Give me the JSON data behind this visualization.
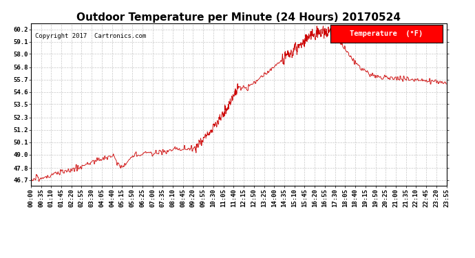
{
  "title": "Outdoor Temperature per Minute (24 Hours) 20170524",
  "copyright_text": "Copyright 2017  Cartronics.com",
  "legend_label": "Temperature  (°F)",
  "line_color": "#cc0000",
  "background_color": "#ffffff",
  "plot_bg_color": "#ffffff",
  "grid_color": "#c0c0c0",
  "ylim": [
    46.2,
    60.75
  ],
  "yticks": [
    46.7,
    47.8,
    49.0,
    50.1,
    51.2,
    52.3,
    53.5,
    54.6,
    55.7,
    56.8,
    58.0,
    59.1,
    60.2
  ],
  "xtick_labels": [
    "00:00",
    "00:35",
    "01:10",
    "01:45",
    "02:20",
    "02:55",
    "03:30",
    "04:05",
    "04:40",
    "05:15",
    "05:50",
    "06:25",
    "07:00",
    "07:35",
    "08:10",
    "08:45",
    "09:20",
    "09:55",
    "10:30",
    "11:05",
    "11:40",
    "12:15",
    "12:50",
    "13:25",
    "14:00",
    "14:35",
    "15:10",
    "15:45",
    "16:20",
    "16:55",
    "17:30",
    "18:05",
    "18:40",
    "19:15",
    "19:50",
    "20:25",
    "21:00",
    "21:35",
    "22:10",
    "22:45",
    "23:20",
    "23:55"
  ],
  "title_fontsize": 11,
  "axis_fontsize": 6.5,
  "copyright_fontsize": 6.5,
  "legend_fontsize": 7.5,
  "n_points": 1440
}
